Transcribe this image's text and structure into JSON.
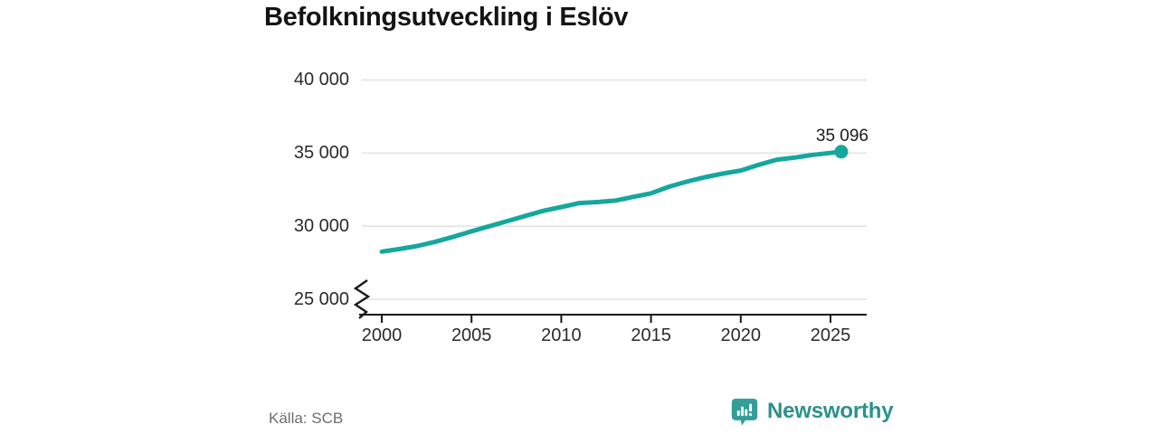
{
  "title": "Befolkningsutveckling i Eslöv",
  "source": "Källa: SCB",
  "branding": {
    "name": "Newsworthy"
  },
  "colors": {
    "line": "#15a79c",
    "brand_icon": "#319e97",
    "brand_text": "#2b918c",
    "grid": "#e3e3e3",
    "axis": "#1a1a1a",
    "text": "#2b2b2b",
    "muted": "#6d6d6d"
  },
  "chart_data": {
    "type": "line",
    "title": "Befolkningsutveckling i Eslöv",
    "xlabel": "",
    "ylabel": "",
    "grid": "horizontal",
    "axis_break_at": 25000,
    "xlim": [
      2000,
      2027
    ],
    "ylim": [
      25000,
      40000
    ],
    "line_color": "#15a79c",
    "x": [
      2000,
      2001,
      2002,
      2003,
      2004,
      2005,
      2006,
      2007,
      2008,
      2009,
      2010,
      2011,
      2012,
      2013,
      2014,
      2015,
      2016,
      2017,
      2018,
      2019,
      2020,
      2021,
      2022,
      2023,
      2024,
      2025.6
    ],
    "values": [
      28260,
      28440,
      28650,
      28940,
      29280,
      29650,
      30000,
      30350,
      30700,
      31050,
      31310,
      31580,
      31650,
      31750,
      32000,
      32250,
      32700,
      33050,
      33350,
      33600,
      33810,
      34200,
      34550,
      34690,
      34880,
      35096
    ],
    "end_value": 35096,
    "end_label": "35 096",
    "yticks": [
      {
        "value": 40000,
        "label": "40 000"
      },
      {
        "value": 35000,
        "label": "35 000"
      },
      {
        "value": 30000,
        "label": "30 000"
      },
      {
        "value": 25000,
        "label": "25 000"
      }
    ],
    "xticks": [
      {
        "value": 2000,
        "label": "2000"
      },
      {
        "value": 2005,
        "label": "2005"
      },
      {
        "value": 2010,
        "label": "2010"
      },
      {
        "value": 2015,
        "label": "2015"
      },
      {
        "value": 2020,
        "label": "2020"
      },
      {
        "value": 2025,
        "label": "2025"
      }
    ],
    "source": "SCB"
  }
}
